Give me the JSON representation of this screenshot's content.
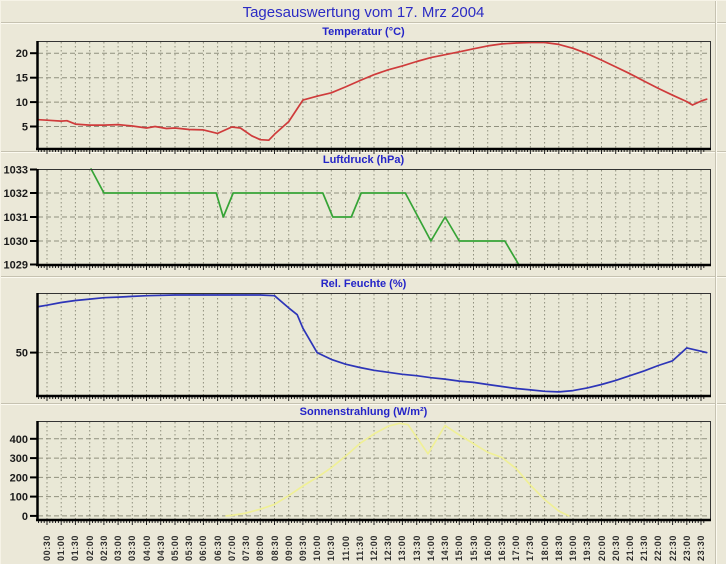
{
  "page": {
    "title": "Tagesauswertung vom 17. Mrz 2004"
  },
  "colors": {
    "background": "#ebe8d8",
    "plot_background": "#e9e8d6",
    "grid": "#90907e",
    "axis": "#000000",
    "main_title_text": "#2c2cc4",
    "chart_title_text": "#2424c8",
    "axis_label_text": "#1a1a1a",
    "temperature_line": "#cf3b3b",
    "pressure_line": "#36a436",
    "humidity_line": "#2d35b8",
    "radiation_line": "#f0f096"
  },
  "x_axis": {
    "labels": [
      "00:30",
      "01:00",
      "01:30",
      "02:00",
      "02:30",
      "03:00",
      "03:30",
      "04:00",
      "04:30",
      "05:00",
      "05:30",
      "06:00",
      "06:30",
      "07:00",
      "07:30",
      "08:00",
      "08:30",
      "09:00",
      "09:30",
      "10:00",
      "10:30",
      "11:00",
      "11:30",
      "12:00",
      "12:30",
      "13:00",
      "13:30",
      "14:00",
      "14:30",
      "15:00",
      "15:30",
      "16:00",
      "16:30",
      "17:00",
      "17:30",
      "18:00",
      "18:30",
      "19:00",
      "19:30",
      "20:00",
      "20:30",
      "21:00",
      "21:30",
      "22:00",
      "22:30",
      "23:00",
      "23:30"
    ]
  },
  "chart_data": [
    {
      "type": "line",
      "title": "Temperatur (°C)",
      "ylim": [
        0.4,
        22.5
      ],
      "ygrid": [
        {
          "v": 5,
          "label": "5"
        },
        {
          "v": 10,
          "label": "10"
        },
        {
          "v": 15,
          "label": "15"
        },
        {
          "v": 20,
          "label": "20"
        }
      ],
      "series": [
        {
          "name": "Temperatur",
          "color": "#cf3b3b",
          "points": [
            [
              0.2,
              6.4
            ],
            [
              0.5,
              6.3
            ],
            [
              1.0,
              6.1
            ],
            [
              1.2,
              6.2
            ],
            [
              1.5,
              5.5
            ],
            [
              2.0,
              5.3
            ],
            [
              2.5,
              5.3
            ],
            [
              3.0,
              5.4
            ],
            [
              3.5,
              5.1
            ],
            [
              4.0,
              4.7
            ],
            [
              4.3,
              5.0
            ],
            [
              4.7,
              4.6
            ],
            [
              5.0,
              4.7
            ],
            [
              5.5,
              4.4
            ],
            [
              6.0,
              4.3
            ],
            [
              6.5,
              3.6
            ],
            [
              7.0,
              4.9
            ],
            [
              7.3,
              4.7
            ],
            [
              7.7,
              3.1
            ],
            [
              8.0,
              2.3
            ],
            [
              8.3,
              2.2
            ],
            [
              8.5,
              3.4
            ],
            [
              9.0,
              6.0
            ],
            [
              9.5,
              10.4
            ],
            [
              10.0,
              11.2
            ],
            [
              10.5,
              11.9
            ],
            [
              11.0,
              13.1
            ],
            [
              11.5,
              14.4
            ],
            [
              12.0,
              15.6
            ],
            [
              12.5,
              16.6
            ],
            [
              13.0,
              17.4
            ],
            [
              13.5,
              18.3
            ],
            [
              14.0,
              19.1
            ],
            [
              14.5,
              19.7
            ],
            [
              15.0,
              20.3
            ],
            [
              15.5,
              20.9
            ],
            [
              16.0,
              21.5
            ],
            [
              16.5,
              21.9
            ],
            [
              17.0,
              22.1
            ],
            [
              17.5,
              22.2
            ],
            [
              18.0,
              22.2
            ],
            [
              18.5,
              21.8
            ],
            [
              19.0,
              21.0
            ],
            [
              19.5,
              19.9
            ],
            [
              20.0,
              18.6
            ],
            [
              20.5,
              17.2
            ],
            [
              21.0,
              15.8
            ],
            [
              21.5,
              14.3
            ],
            [
              22.0,
              12.8
            ],
            [
              22.5,
              11.4
            ],
            [
              23.0,
              10.1
            ],
            [
              23.2,
              9.4
            ],
            [
              23.5,
              10.2
            ],
            [
              23.7,
              10.6
            ]
          ]
        }
      ]
    },
    {
      "type": "line",
      "title": "Luftdruck (hPa)",
      "ylim": [
        1029,
        1033
      ],
      "ygrid": [
        {
          "v": 1029,
          "label": "1029"
        },
        {
          "v": 1030,
          "label": "1030"
        },
        {
          "v": 1031,
          "label": "1031"
        },
        {
          "v": 1032,
          "label": "1032"
        },
        {
          "v": 1033,
          "label": "1033"
        }
      ],
      "series": [
        {
          "name": "Luftdruck",
          "color": "#36a436",
          "points": [
            [
              2.05,
              1033
            ],
            [
              2.5,
              1032
            ],
            [
              6.45,
              1032
            ],
            [
              6.7,
              1031
            ],
            [
              7.05,
              1032
            ],
            [
              10.2,
              1032
            ],
            [
              10.55,
              1031
            ],
            [
              11.2,
              1031
            ],
            [
              11.55,
              1032
            ],
            [
              13.1,
              1032
            ],
            [
              14.0,
              1030
            ],
            [
              14.5,
              1031
            ],
            [
              15.0,
              1030
            ],
            [
              16.6,
              1030
            ],
            [
              17.1,
              1029
            ]
          ]
        }
      ]
    },
    {
      "type": "line",
      "title": "Rel. Feuchte (%)",
      "ylim": [
        18,
        94
      ],
      "ygrid": [
        {
          "v": 50,
          "label": "50"
        }
      ],
      "series": [
        {
          "name": "Rel. Feuchte",
          "color": "#2d35b8",
          "points": [
            [
              0.2,
              84
            ],
            [
              0.5,
              85
            ],
            [
              1.0,
              87
            ],
            [
              1.5,
              88.5
            ],
            [
              2.0,
              89.5
            ],
            [
              2.5,
              90.5
            ],
            [
              3.0,
              91
            ],
            [
              3.5,
              91.5
            ],
            [
              4.0,
              92
            ],
            [
              5.0,
              92.5
            ],
            [
              6.0,
              92.5
            ],
            [
              7.0,
              92.5
            ],
            [
              8.0,
              92.5
            ],
            [
              8.5,
              92
            ],
            [
              9.0,
              83
            ],
            [
              9.3,
              78
            ],
            [
              9.5,
              68
            ],
            [
              10.0,
              50
            ],
            [
              10.5,
              45
            ],
            [
              11.0,
              41.5
            ],
            [
              11.5,
              39
            ],
            [
              12.0,
              37
            ],
            [
              12.5,
              35.5
            ],
            [
              13.0,
              34
            ],
            [
              13.5,
              33
            ],
            [
              14.0,
              31.5
            ],
            [
              14.5,
              30.5
            ],
            [
              15.0,
              29
            ],
            [
              15.5,
              28
            ],
            [
              16.0,
              26.5
            ],
            [
              16.5,
              25
            ],
            [
              17.0,
              23.5
            ],
            [
              17.5,
              22.5
            ],
            [
              18.0,
              21.5
            ],
            [
              18.5,
              21
            ],
            [
              19.0,
              22
            ],
            [
              19.5,
              24
            ],
            [
              20.0,
              26.5
            ],
            [
              20.5,
              29.5
            ],
            [
              21.0,
              33
            ],
            [
              21.5,
              36.5
            ],
            [
              22.0,
              40.5
            ],
            [
              22.5,
              44
            ],
            [
              23.0,
              53.5
            ],
            [
              23.7,
              50
            ]
          ]
        }
      ]
    },
    {
      "type": "line",
      "title": "Sonnenstrahlung (W/m²)",
      "ylim": [
        -21,
        492
      ],
      "ygrid": [
        {
          "v": 0,
          "label": "0"
        },
        {
          "v": 100,
          "label": "100"
        },
        {
          "v": 200,
          "label": "200"
        },
        {
          "v": 300,
          "label": "300"
        },
        {
          "v": 400,
          "label": "400"
        }
      ],
      "series": [
        {
          "name": "Sonnenstrahlung",
          "color": "#f0f096",
          "points": [
            [
              6.8,
              0
            ],
            [
              7.0,
              3
            ],
            [
              7.5,
              15
            ],
            [
              8.0,
              35
            ],
            [
              8.5,
              60
            ],
            [
              9.0,
              105
            ],
            [
              9.5,
              155
            ],
            [
              10.0,
              200
            ],
            [
              10.5,
              250
            ],
            [
              11.0,
              310
            ],
            [
              11.5,
              375
            ],
            [
              12.0,
              425
            ],
            [
              12.5,
              465
            ],
            [
              12.9,
              480
            ],
            [
              13.2,
              473
            ],
            [
              13.9,
              322
            ],
            [
              14.5,
              468
            ],
            [
              15.0,
              420
            ],
            [
              15.5,
              375
            ],
            [
              16.0,
              330
            ],
            [
              16.5,
              303
            ],
            [
              17.0,
              245
            ],
            [
              17.5,
              160
            ],
            [
              18.0,
              85
            ],
            [
              18.5,
              25
            ],
            [
              18.85,
              0
            ]
          ]
        }
      ]
    }
  ]
}
